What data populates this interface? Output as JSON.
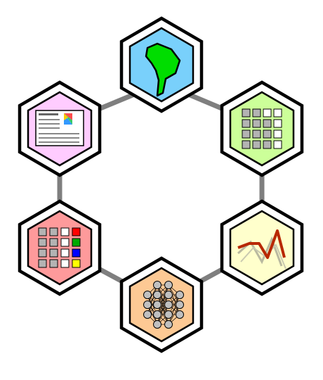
{
  "diagram": {
    "connector_color": "#7f7f7f",
    "nodes": [
      {
        "id": "map",
        "icon": "map-icon",
        "fill": "#79d0fb"
      },
      {
        "id": "grid",
        "icon": "grid-icon",
        "fill": "#ccff99"
      },
      {
        "id": "line-chart",
        "icon": "line-chart-icon",
        "fill": "#ffffcc"
      },
      {
        "id": "network",
        "icon": "neural-network-icon",
        "fill": "#fdc994"
      },
      {
        "id": "color-grid",
        "icon": "color-grid-icon",
        "fill": "#fe9a9b"
      },
      {
        "id": "document",
        "icon": "document-icon",
        "fill": "#ffccff"
      }
    ]
  }
}
